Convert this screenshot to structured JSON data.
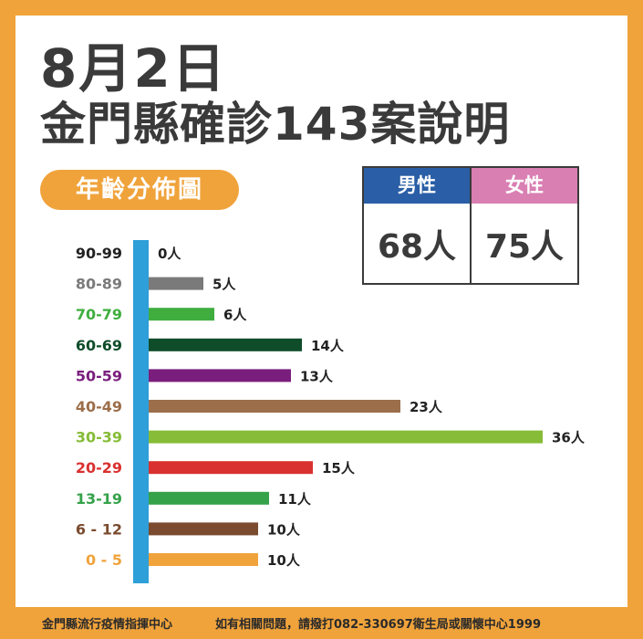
{
  "title": {
    "date": "8月2日",
    "main": "金門縣確診143案說明"
  },
  "section_label": "年齡分佈圖",
  "gender": {
    "male_label": "男性",
    "male_value": "68人",
    "male_color": "#2a5ea6",
    "female_label": "女性",
    "female_value": "75人",
    "female_color": "#d97fb2"
  },
  "footer": {
    "left": "金門縣流行疫情指揮中心",
    "right": "如有相關問題，請撥打082-330697衛生局或關懷中心1999"
  },
  "colors": {
    "background": "#f0a33b",
    "axis": "#2e9fd8"
  },
  "chart_data": {
    "type": "bar",
    "orientation": "horizontal",
    "title": "年齡分佈圖",
    "categories": [
      "90-99",
      "80-89",
      "70-79",
      "60-69",
      "50-59",
      "40-49",
      "30-39",
      "20-29",
      "13-19",
      "6 - 12",
      "0 - 5"
    ],
    "values": [
      0,
      5,
      6,
      14,
      13,
      23,
      36,
      15,
      11,
      10,
      10
    ],
    "value_labels": [
      "0人",
      "5人",
      "6人",
      "14人",
      "13人",
      "23人",
      "36人",
      "15人",
      "11人",
      "10人",
      "10人"
    ],
    "colors": [
      "#222222",
      "#7a7a7a",
      "#3fae3f",
      "#0f4d2a",
      "#7a1e7d",
      "#9c6e4a",
      "#86bc37",
      "#d9312f",
      "#35a24a",
      "#7a4b2e",
      "#f0a33b"
    ],
    "xlim": [
      0,
      36
    ]
  }
}
